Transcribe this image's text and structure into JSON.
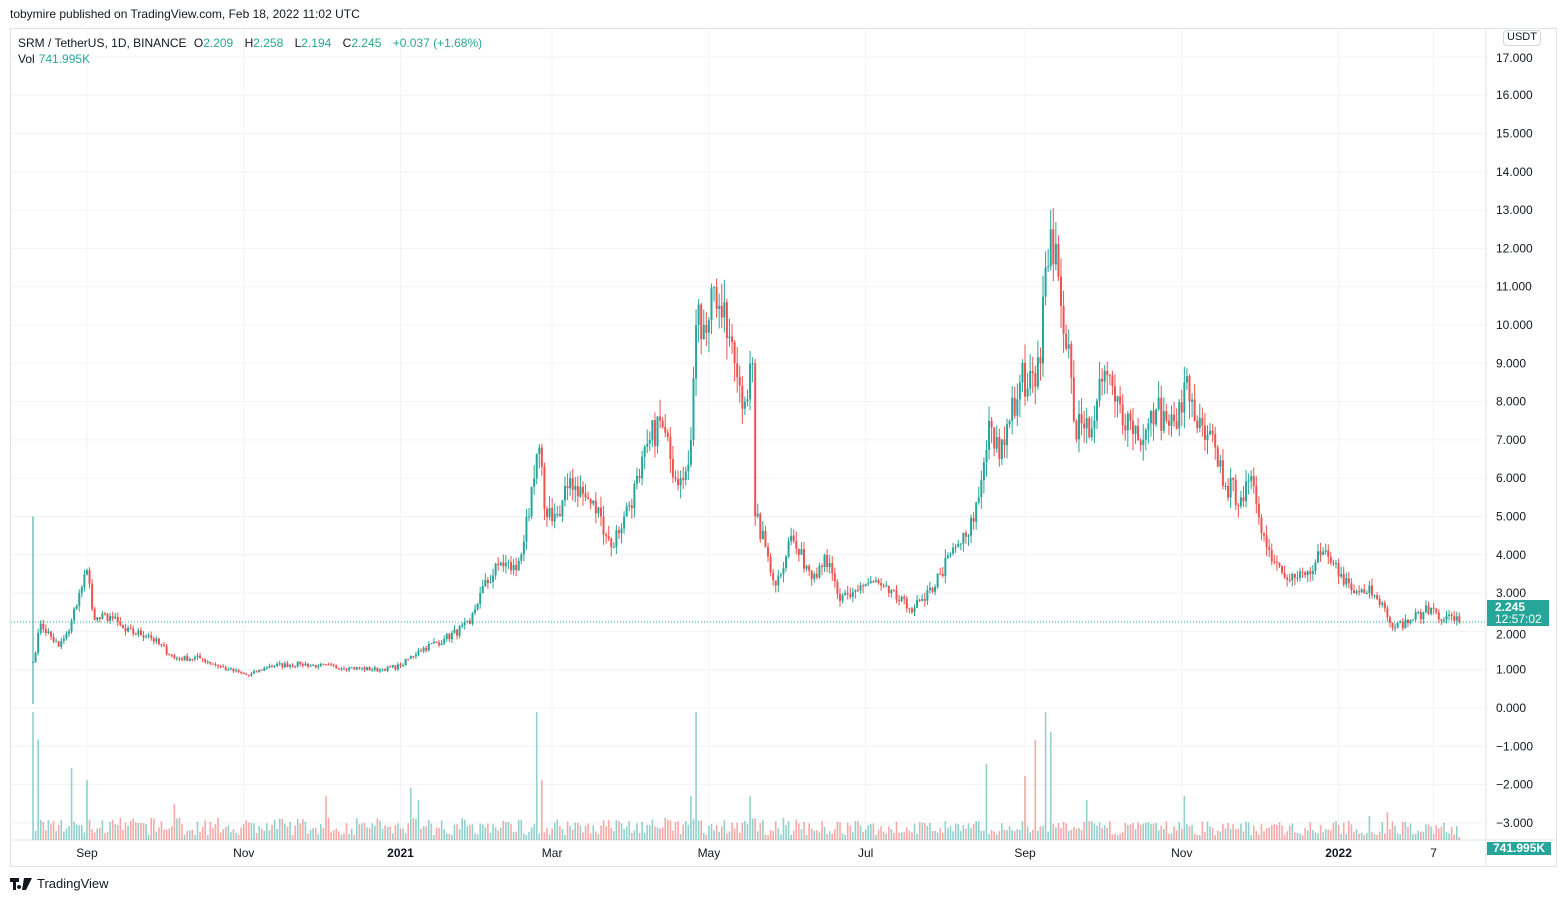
{
  "header": {
    "published": "tobymire published on TradingView.com, Feb 18, 2022 11:02 UTC"
  },
  "legend": {
    "symbol": "SRM / TetherUS, 1D, BINANCE",
    "o_label": "O",
    "o": "2.209",
    "h_label": "H",
    "h": "2.258",
    "l_label": "L",
    "l": "2.194",
    "c_label": "C",
    "c": "2.245",
    "change": "+0.037 (+1.68%)",
    "vol_label": "Vol",
    "vol": "741.995K"
  },
  "axis": {
    "currency": "USDT",
    "last_price": "2.245",
    "countdown": "12:57:02",
    "last_volume": "741.995K"
  },
  "brand": "TradingView",
  "colors": {
    "up": "#26a69a",
    "down": "#ef5350",
    "grid": "#f0f3fa"
  },
  "chart_data": {
    "type": "candlestick",
    "title": "SRM / TetherUS, 1D, BINANCE",
    "start_date": "2020-08-11",
    "ylim": [
      -3,
      17
    ],
    "y_ticks": [
      "17.000",
      "16.000",
      "15.000",
      "14.000",
      "13.000",
      "12.000",
      "11.000",
      "10.000",
      "9.000",
      "8.000",
      "7.000",
      "6.000",
      "5.000",
      "4.000",
      "3.000",
      "2.000",
      "1.000",
      "0.000",
      "−1.000",
      "−2.000",
      "−3.000"
    ],
    "y_tick_values": [
      17,
      16,
      15,
      14,
      13,
      12,
      11,
      10,
      9,
      8,
      7,
      6,
      5,
      4,
      3,
      2,
      1,
      0,
      -1,
      -2,
      -3
    ],
    "x_ticks": [
      {
        "label": "Sep",
        "day": 21
      },
      {
        "label": "Nov",
        "day": 82
      },
      {
        "label": "2021",
        "day": 143,
        "bold": true
      },
      {
        "label": "Mar",
        "day": 202
      },
      {
        "label": "May",
        "day": 263
      },
      {
        "label": "Jul",
        "day": 324
      },
      {
        "label": "Sep",
        "day": 386
      },
      {
        "label": "Nov",
        "day": 447
      },
      {
        "label": "2022",
        "day": 508,
        "bold": true
      },
      {
        "label": "7",
        "day": 545
      }
    ],
    "close_keypoints_day_price": [
      [
        0,
        1.2
      ],
      [
        3,
        2.2
      ],
      [
        10,
        1.6
      ],
      [
        14,
        2.0
      ],
      [
        18,
        3.0
      ],
      [
        21,
        3.6
      ],
      [
        24,
        2.3
      ],
      [
        30,
        2.4
      ],
      [
        36,
        2.0
      ],
      [
        45,
        1.9
      ],
      [
        55,
        1.3
      ],
      [
        65,
        1.3
      ],
      [
        76,
        1.0
      ],
      [
        84,
        0.85
      ],
      [
        92,
        1.1
      ],
      [
        104,
        1.15
      ],
      [
        111,
        1.1
      ],
      [
        123,
        1.05
      ],
      [
        135,
        1.0
      ],
      [
        143,
        1.1
      ],
      [
        150,
        1.5
      ],
      [
        160,
        1.8
      ],
      [
        170,
        2.2
      ],
      [
        174,
        3.0
      ],
      [
        182,
        3.8
      ],
      [
        188,
        3.6
      ],
      [
        193,
        5.0
      ],
      [
        197,
        6.8
      ],
      [
        199,
        5.2
      ],
      [
        205,
        5.0
      ],
      [
        209,
        6.0
      ],
      [
        215,
        5.5
      ],
      [
        221,
        5.0
      ],
      [
        225,
        4.2
      ],
      [
        230,
        5.0
      ],
      [
        236,
        6.0
      ],
      [
        240,
        7.0
      ],
      [
        244,
        7.5
      ],
      [
        248,
        6.5
      ],
      [
        252,
        6.0
      ],
      [
        256,
        7.0
      ],
      [
        258,
        10.0
      ],
      [
        261,
        10.0
      ],
      [
        265,
        11.0
      ],
      [
        267,
        10.5
      ],
      [
        273,
        9.0
      ],
      [
        277,
        8.0
      ],
      [
        280,
        9.0
      ],
      [
        281,
        5.0
      ],
      [
        285,
        4.2
      ],
      [
        289,
        3.2
      ],
      [
        295,
        4.5
      ],
      [
        298,
        4.0
      ],
      [
        304,
        3.5
      ],
      [
        308,
        4.0
      ],
      [
        314,
        2.8
      ],
      [
        318,
        2.9
      ],
      [
        322,
        3.2
      ],
      [
        327,
        3.3
      ],
      [
        333,
        3.0
      ],
      [
        341,
        2.6
      ],
      [
        347,
        2.8
      ],
      [
        353,
        3.5
      ],
      [
        359,
        4.2
      ],
      [
        364,
        4.5
      ],
      [
        368,
        5.5
      ],
      [
        372,
        7.5
      ],
      [
        376,
        6.5
      ],
      [
        380,
        7.5
      ],
      [
        384,
        8.5
      ],
      [
        388,
        8.8
      ],
      [
        392,
        9.0
      ],
      [
        394,
        11.5
      ],
      [
        396,
        12.5
      ],
      [
        400,
        10.5
      ],
      [
        403,
        9.5
      ],
      [
        405,
        7.5
      ],
      [
        409,
        7.3
      ],
      [
        413,
        7.5
      ],
      [
        417,
        8.8
      ],
      [
        421,
        8.0
      ],
      [
        427,
        7.5
      ],
      [
        432,
        7.0
      ],
      [
        437,
        7.8
      ],
      [
        441,
        7.5
      ],
      [
        445,
        7.3
      ],
      [
        448,
        8.5
      ],
      [
        452,
        7.5
      ],
      [
        456,
        7.0
      ],
      [
        460,
        6.8
      ],
      [
        464,
        5.8
      ],
      [
        470,
        5.5
      ],
      [
        475,
        5.8
      ],
      [
        480,
        4.2
      ],
      [
        485,
        3.7
      ],
      [
        491,
        3.4
      ],
      [
        497,
        3.5
      ],
      [
        501,
        4.0
      ],
      [
        505,
        3.8
      ],
      [
        509,
        3.5
      ],
      [
        514,
        3.0
      ],
      [
        520,
        3.2
      ],
      [
        526,
        2.6
      ],
      [
        530,
        2.1
      ],
      [
        536,
        2.3
      ],
      [
        541,
        2.5
      ],
      [
        545,
        2.6
      ],
      [
        549,
        2.3
      ],
      [
        552,
        2.4
      ],
      [
        555,
        2.245
      ]
    ],
    "volume_spikes_day_k": [
      [
        0,
        32000
      ],
      [
        2,
        25000
      ],
      [
        15,
        18000
      ],
      [
        21,
        15000
      ],
      [
        55,
        9000
      ],
      [
        114,
        11000
      ],
      [
        147,
        13000
      ],
      [
        150,
        10000
      ],
      [
        196,
        32000
      ],
      [
        198,
        15000
      ],
      [
        258,
        32000
      ],
      [
        256,
        11000
      ],
      [
        279,
        11000
      ],
      [
        371,
        19000
      ],
      [
        386,
        16000
      ],
      [
        390,
        25000
      ],
      [
        394,
        32000
      ],
      [
        396,
        27000
      ],
      [
        410,
        10000
      ],
      [
        448,
        11000
      ],
      [
        520,
        6000
      ],
      [
        527,
        7000
      ],
      [
        555,
        742
      ]
    ],
    "volume_base_k": 4000
  }
}
